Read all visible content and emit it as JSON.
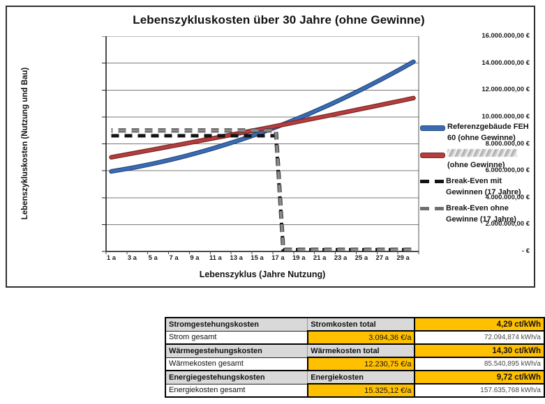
{
  "chart": {
    "title": "Lebenszykluskosten über 30 Jahre (ohne Gewinne)",
    "y_axis_title": "Lebenszykluskosten (Nutzung und Bau)",
    "x_axis_title": "Lebenszyklus (Jahre Nutzung)"
  },
  "legend": {
    "items": [
      {
        "label": "Referenzgebäude FEH 60 (ohne Gewinne)",
        "redacted": false,
        "marker": "blue-solid-line"
      },
      {
        "label": "(ohne Gewinne)",
        "redacted": true,
        "marker": "red-solid-line"
      },
      {
        "label": "Break-Even mit Gewinnen (17 Jahre)",
        "redacted": false,
        "marker": "black-dashed-line"
      },
      {
        "label": "Break-Even ohne Gewinne (17 Jahre)",
        "redacted": false,
        "marker": "gray-dashed-line"
      }
    ]
  },
  "chart_data": {
    "type": "line",
    "title": "Lebenszykluskosten über 30 Jahre (ohne Gewinne)",
    "xlabel": "Lebenszyklus (Jahre Nutzung)",
    "ylabel": "Lebenszykluskosten (Nutzung und Bau)",
    "ylim": [
      0,
      16000000
    ],
    "grid": "horizontal",
    "legend_position": "right",
    "x": [
      1,
      2,
      3,
      4,
      5,
      6,
      7,
      8,
      9,
      10,
      11,
      12,
      13,
      14,
      15,
      16,
      17,
      18,
      19,
      20,
      21,
      22,
      23,
      24,
      25,
      26,
      27,
      28,
      29,
      30
    ],
    "x_ticks": [
      {
        "year": 1,
        "label": "1 a"
      },
      {
        "year": 3,
        "label": "3 a"
      },
      {
        "year": 5,
        "label": "5 a"
      },
      {
        "year": 7,
        "label": "7 a"
      },
      {
        "year": 9,
        "label": "9 a"
      },
      {
        "year": 11,
        "label": "11 a"
      },
      {
        "year": 13,
        "label": "13 a"
      },
      {
        "year": 15,
        "label": "15 a"
      },
      {
        "year": 17,
        "label": "17 a"
      },
      {
        "year": 19,
        "label": "19 a"
      },
      {
        "year": 21,
        "label": "21 a"
      },
      {
        "year": 23,
        "label": "23 a"
      },
      {
        "year": 25,
        "label": "25 a"
      },
      {
        "year": 27,
        "label": "27 a"
      },
      {
        "year": 29,
        "label": "29 a"
      }
    ],
    "y_ticks": [
      {
        "value": 16000000,
        "label": "16.000.000,00 €"
      },
      {
        "value": 14000000,
        "label": "14.000.000,00 €"
      },
      {
        "value": 12000000,
        "label": "12.000.000,00 €"
      },
      {
        "value": 10000000,
        "label": "10.000.000,00 €"
      },
      {
        "value": 8000000,
        "label": "8.000.000,00 €"
      },
      {
        "value": 6000000,
        "label": "6.000.000,00 €"
      },
      {
        "value": 4000000,
        "label": "4.000.000,00 €"
      },
      {
        "value": 2000000,
        "label": "2.000.000,00 €"
      },
      {
        "value": 0,
        "label": "-   €"
      }
    ],
    "series": [
      {
        "name": "Referenzgebäude FEH 60 (ohne Gewinne)",
        "style": "solid",
        "color": "#3A6CB5",
        "edge_color": "#26497D",
        "values": [
          5950000,
          6077000,
          6215000,
          6364000,
          6523000,
          6694000,
          6876000,
          7069000,
          7273000,
          7488000,
          7714000,
          7951000,
          8199000,
          8458000,
          8728000,
          9009000,
          9301000,
          9605000,
          9919000,
          10244000,
          10580000,
          10927000,
          11285000,
          11655000,
          12035000,
          12426000,
          12829000,
          13242000,
          13666000,
          14102000
        ]
      },
      {
        "name": "(ohne Gewinne)",
        "name_redacted": true,
        "style": "solid",
        "color": "#B43E3E",
        "edge_color": "#7D2626",
        "values": [
          7000000,
          7141000,
          7284000,
          7426000,
          7570000,
          7714000,
          7859000,
          8005000,
          8152000,
          8299000,
          8447000,
          8596000,
          8745000,
          8896000,
          9047000,
          9198000,
          9351000,
          9504000,
          9658000,
          9813000,
          9968000,
          10124000,
          10281000,
          10439000,
          10597000,
          10756000,
          10916000,
          11077000,
          11238000,
          11400000
        ]
      },
      {
        "name": "Break-Even mit Gewinnen (17 Jahre)",
        "style": "dashed",
        "color": "#141414",
        "edge_color": "#141414",
        "level": 8600000,
        "drop_start_year": 16.8,
        "drop_end_year": 17.5,
        "end_year": 30
      },
      {
        "name": "Break-Even ohne Gewinne (17 Jahre)",
        "style": "dashed",
        "color": "#8C8C8C",
        "edge_color": "#454545",
        "level": 9000000,
        "drop_start_year": 16.8,
        "drop_end_year": 17.5,
        "end_year": 30
      }
    ]
  },
  "table": {
    "rows": [
      {
        "c1": "Stromgestehungskosten",
        "c2": "Stromkosten total",
        "c3": "4,29 ct/kWh"
      },
      {
        "c1": "Strom gesamt",
        "c2": "3.094,36 €/a",
        "c3": "72.094,874 kWh/a"
      },
      {
        "c1": "Wärmegestehungskosten",
        "c2": "Wärmekosten total",
        "c3": "14,30 ct/kWh"
      },
      {
        "c1": "Wärmekosten gesamt",
        "c2": "12.230,75 €/a",
        "c3": "85.540,895 kWh/a"
      },
      {
        "c1": "Energiegestehungskosten",
        "c2": "Energiekosten",
        "c3": "9,72 ct/kWh"
      },
      {
        "c1": "Energiekosten gesamt",
        "c2": "15.325,12 €/a",
        "c3": "157.635,768 kWh/a"
      }
    ]
  },
  "colors": {
    "series_blue": "#3A6CB5",
    "series_red": "#B43E3E",
    "break_even_black": "#141414",
    "break_even_gray": "#8C8C8C",
    "gridline": "#787878",
    "highlight_yellow": "#FFC000",
    "header_gray": "#D9D9D9"
  }
}
